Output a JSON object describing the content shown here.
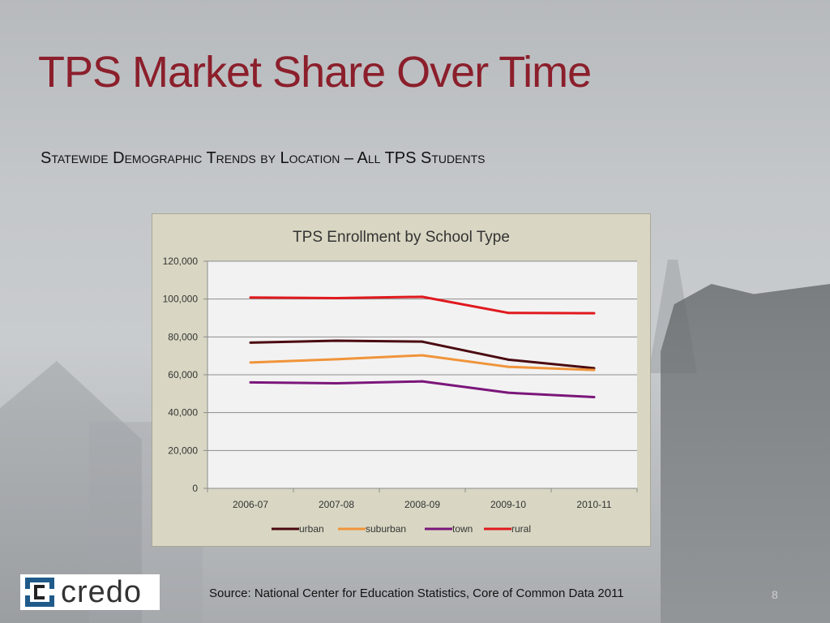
{
  "slide": {
    "title": "TPS Market Share Over Time",
    "subtitle": "Statewide Demographic Trends by Location – All TPS Students",
    "source": "Source:  National Center for Education Statistics, Core of Common Data 2011",
    "page_number": "8",
    "logo_text": "credo"
  },
  "colors": {
    "title": "#8b1f2b",
    "chart_frame": "#d9d7c3",
    "plot_area": "#f2f2f2"
  },
  "chart_data": {
    "type": "line",
    "title": "TPS Enrollment by School Type",
    "categories": [
      "2006-07",
      "2007-08",
      "2008-09",
      "2009-10",
      "2010-11"
    ],
    "ylim": [
      0,
      120000
    ],
    "yticks": [
      "0",
      "20,000",
      "40,000",
      "60,000",
      "80,000",
      "100,000",
      "120,000"
    ],
    "ytick_values": [
      0,
      20000,
      40000,
      60000,
      80000,
      100000,
      120000
    ],
    "grid": true,
    "legend_position": "bottom",
    "series": [
      {
        "name": "urban",
        "color": "#4a0a10",
        "values": [
          77000,
          78000,
          77500,
          68000,
          63500
        ]
      },
      {
        "name": "suburban",
        "color": "#f0943a",
        "values": [
          66500,
          68200,
          70300,
          64200,
          62500
        ]
      },
      {
        "name": "town",
        "color": "#7b167a",
        "values": [
          56000,
          55500,
          56500,
          50500,
          48200
        ]
      },
      {
        "name": "rural",
        "color": "#e0191e",
        "values": [
          100800,
          100500,
          101200,
          92700,
          92500
        ]
      }
    ]
  }
}
